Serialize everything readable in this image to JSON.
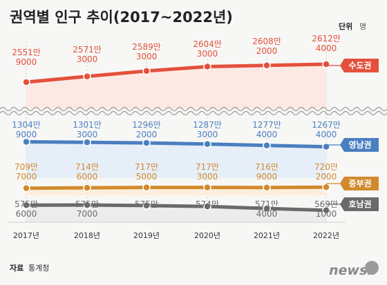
{
  "title": "권역별 인구 추이(2017~2022년)",
  "unit": {
    "label": "단위",
    "value": "명"
  },
  "source": {
    "label": "자료",
    "value": "통계청"
  },
  "logo": "news1",
  "chart_data": {
    "type": "line",
    "title": "권역별 인구 추이(2017~2022년)",
    "x": [
      "2017년",
      "2018년",
      "2019년",
      "2020년",
      "2021년",
      "2022년"
    ],
    "axis_break": true,
    "grid": "vertical dashed",
    "series": [
      {
        "name": "수도권",
        "color": "#e3503b",
        "fill": "#fde9e4",
        "values": [
          25519000,
          25713000,
          25893000,
          26043000,
          26082000,
          26124000
        ],
        "labels": [
          [
            "2551만",
            "9000"
          ],
          [
            "2571만",
            "3000"
          ],
          [
            "2589만",
            "3000"
          ],
          [
            "2604만",
            "3000"
          ],
          [
            "2608만",
            "2000"
          ],
          [
            "2612만",
            "4000"
          ]
        ]
      },
      {
        "name": "영남권",
        "color": "#4a7fc0",
        "fill": "#e6eef8",
        "values": [
          13049000,
          13013000,
          12962000,
          12873000,
          12774000,
          12674000
        ],
        "labels": [
          [
            "1304만",
            "9000"
          ],
          [
            "1301만",
            "3000"
          ],
          [
            "1296만",
            "2000"
          ],
          [
            "1287만",
            "3000"
          ],
          [
            "1277만",
            "4000"
          ],
          [
            "1267만",
            "4000"
          ]
        ]
      },
      {
        "name": "중부권",
        "color": "#d18a2c",
        "fill": "#fbefdc",
        "values": [
          7097000,
          7146000,
          7175000,
          7173000,
          7169000,
          7202000
        ],
        "labels": [
          [
            "709만",
            "7000"
          ],
          [
            "714만",
            "6000"
          ],
          [
            "717만",
            "5000"
          ],
          [
            "717만",
            "3000"
          ],
          [
            "716만",
            "9000"
          ],
          [
            "720만",
            "2000"
          ]
        ]
      },
      {
        "name": "호남권",
        "color": "#6a6a6a",
        "fill": "#ececec",
        "values": [
          5756000,
          5757000,
          5750000,
          5740000,
          5714000,
          5691000
        ],
        "labels": [
          [
            "575만",
            "6000"
          ],
          [
            "575만",
            "7000"
          ],
          [
            "575만",
            ""
          ],
          [
            "574만",
            ""
          ],
          [
            "571만",
            "4000"
          ],
          [
            "569만",
            "1000"
          ]
        ]
      }
    ]
  }
}
